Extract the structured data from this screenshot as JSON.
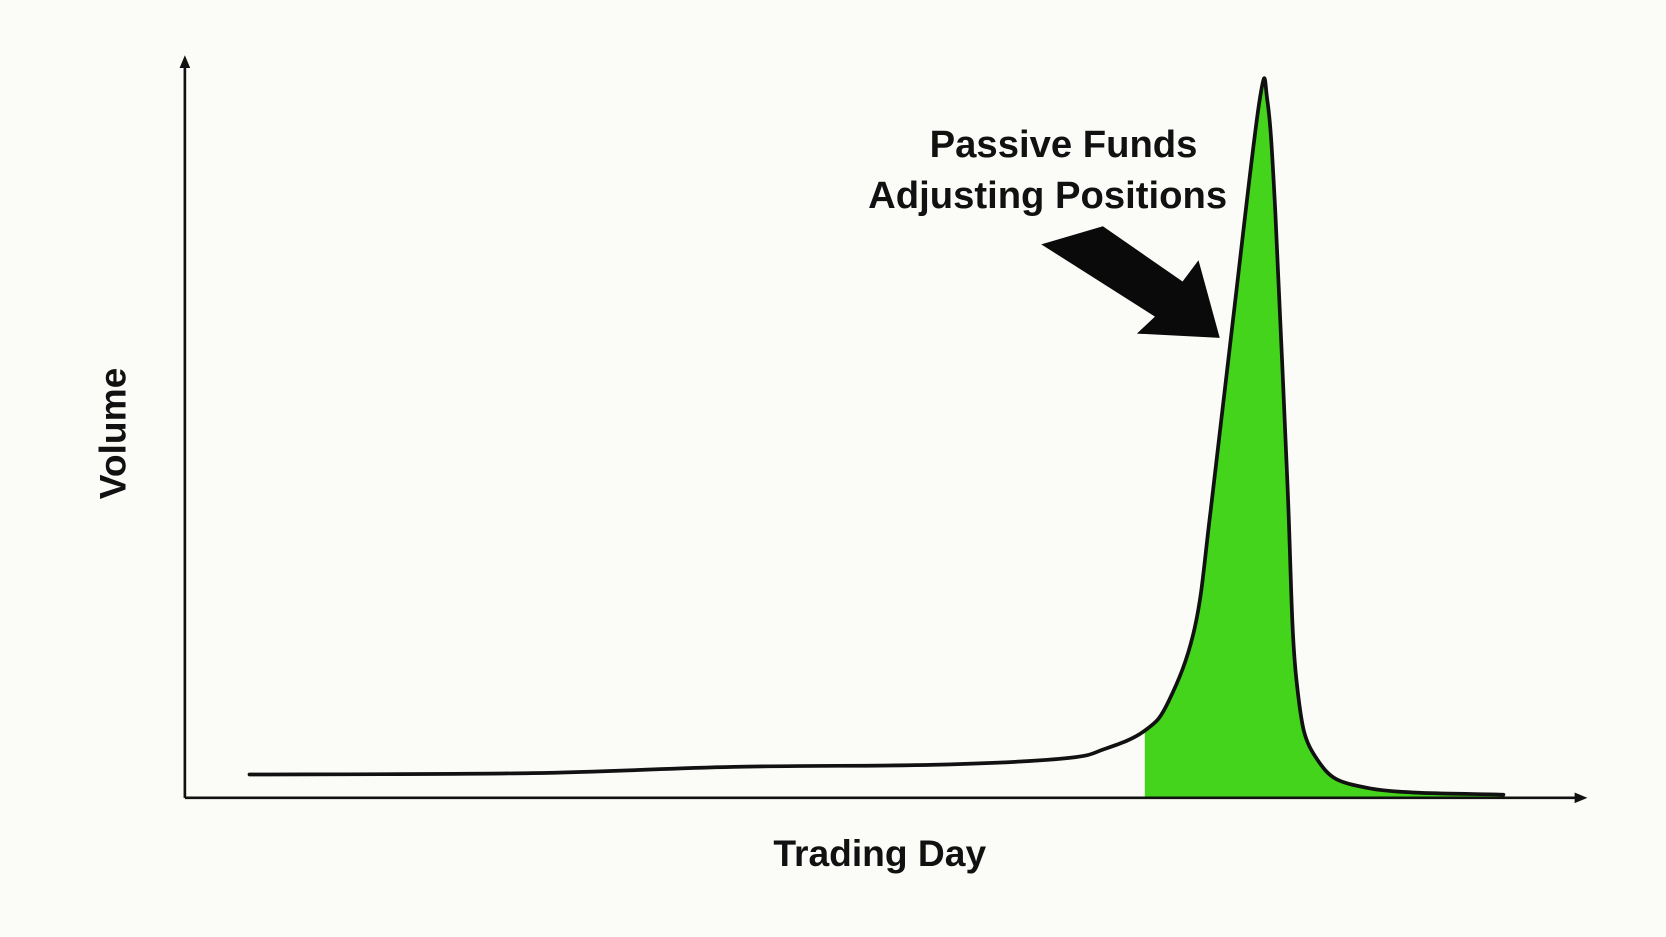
{
  "chart_data": {
    "type": "area",
    "title": "",
    "xlabel": "Trading Day",
    "ylabel": "Volume",
    "xlim": [
      0,
      100
    ],
    "ylim": [
      0,
      100
    ],
    "grid": false,
    "ticks_shown": false,
    "highlight_start_x": 72.8,
    "highlight_color": "#44d41c",
    "line_color": "#111111",
    "series": [
      {
        "x": [
          4.9,
          26.3,
          41.6,
          56.9,
          66.6,
          69.8,
          72.8,
          74.6,
          76.6,
          77.8,
          79.5,
          81.5,
          82.1,
          82.7,
          83.6,
          84.3,
          85.9,
          89.9,
          100
        ],
        "y": [
          3.2,
          3.4,
          4.3,
          4.6,
          5.5,
          6.9,
          9.5,
          13.7,
          24.4,
          41.2,
          68.7,
          100,
          100,
          84.0,
          45.8,
          16.8,
          5.3,
          1.2,
          0.3
        ]
      }
    ],
    "annotation": {
      "lines": [
        "Passive Funds",
        "Adjusting Positions"
      ],
      "arrow_icon": "arrow-down-right-icon"
    }
  }
}
